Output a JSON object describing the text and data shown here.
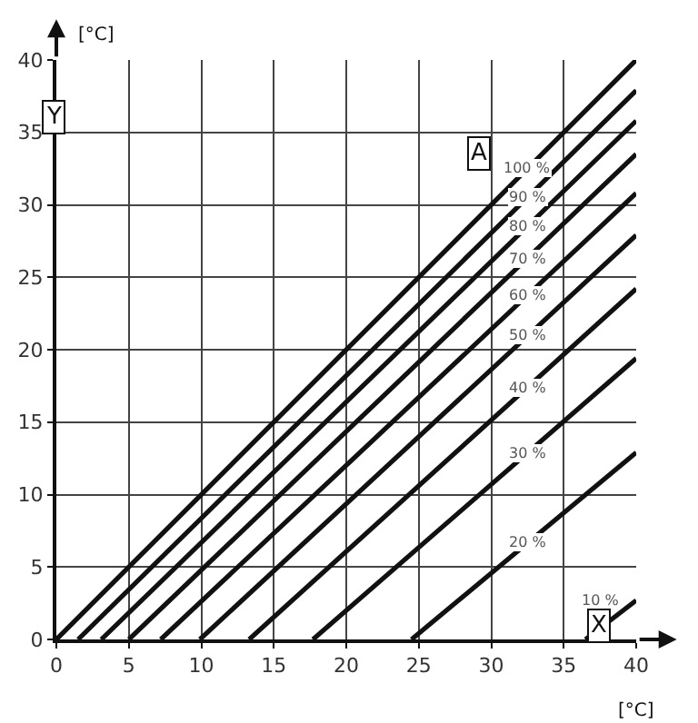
{
  "chart_data": {
    "type": "line",
    "xlabel": "X",
    "ylabel": "Y",
    "xlim": [
      0,
      40
    ],
    "ylim": [
      0,
      40
    ],
    "xticks": [
      0,
      5,
      10,
      15,
      20,
      25,
      30,
      35,
      40
    ],
    "yticks": [
      0,
      5,
      10,
      15,
      20,
      25,
      30,
      35,
      40
    ],
    "grid": true,
    "legend": false,
    "marker": "none",
    "line_style": "solid",
    "series": [
      {
        "name": "100 %",
        "color": "#111111",
        "x": [
          0,
          40
        ],
        "values": [
          0,
          40
        ]
      },
      {
        "name": "90 %",
        "color": "#111111",
        "x": [
          1.5,
          40
        ],
        "values": [
          0,
          37.9
        ]
      },
      {
        "name": "80 %",
        "color": "#111111",
        "x": [
          3.1,
          40
        ],
        "values": [
          0,
          35.8
        ]
      },
      {
        "name": "70 %",
        "color": "#111111",
        "x": [
          5,
          40
        ],
        "values": [
          0,
          33.5
        ]
      },
      {
        "name": "60 %",
        "color": "#111111",
        "x": [
          7.2,
          40
        ],
        "values": [
          0,
          30.8
        ]
      },
      {
        "name": "50 %",
        "color": "#111111",
        "x": [
          9.9,
          40
        ],
        "values": [
          0,
          27.9
        ]
      },
      {
        "name": "40 %",
        "color": "#111111",
        "x": [
          13.3,
          40
        ],
        "values": [
          0,
          24.2
        ]
      },
      {
        "name": "30 %",
        "color": "#111111",
        "x": [
          17.7,
          40
        ],
        "values": [
          0,
          19.4
        ]
      },
      {
        "name": "20 %",
        "color": "#111111",
        "x": [
          24.5,
          40
        ],
        "values": [
          0,
          12.9
        ]
      },
      {
        "name": "10 %",
        "color": "#111111",
        "x": [
          36.5,
          40
        ],
        "values": [
          0,
          2.7
        ]
      }
    ],
    "annotations": [
      "[°C]",
      "[°C]",
      "A"
    ]
  }
}
